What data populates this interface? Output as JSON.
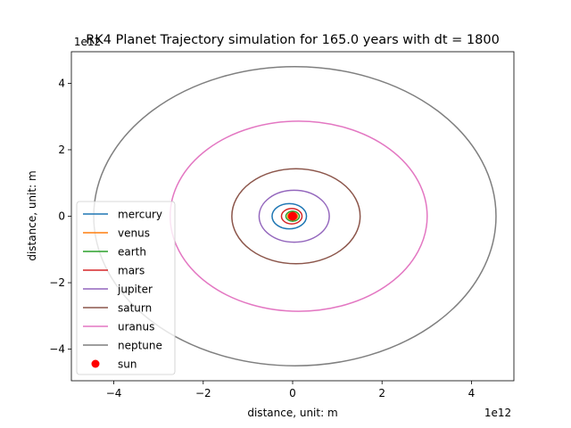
{
  "chart_data": {
    "type": "line",
    "title": "RK4 Planet Trajectory simulation for 165.0 years with dt = 1800",
    "xlabel": "distance, unit: m",
    "ylabel": "distance, unit: m",
    "x_offset_label": "1e12",
    "y_offset_label": "1e12",
    "xlim": [
      -4950000000000.0,
      4950000000000.0
    ],
    "ylim": [
      -4950000000000.0,
      4950000000000.0
    ],
    "x_ticks": [
      -4,
      -2,
      0,
      2,
      4
    ],
    "y_ticks": [
      -4,
      -2,
      0,
      2,
      4
    ],
    "x_tick_labels": [
      "−4",
      "−2",
      "0",
      "2",
      "4"
    ],
    "y_tick_labels": [
      "−4",
      "−2",
      "0",
      "2",
      "4"
    ],
    "grid": false,
    "legend_position": "lower-left",
    "series": [
      {
        "name": "mercury",
        "color": "#1f77b4",
        "orbit": {
          "x_min": -460000000000.0,
          "x_max": 310000000000.0,
          "y_max": 380000000000.0
        }
      },
      {
        "name": "venus",
        "color": "#ff7f0e",
        "orbit": {
          "x_min": -110000000000.0,
          "x_max": 110000000000.0,
          "y_max": 110000000000.0
        }
      },
      {
        "name": "earth",
        "color": "#2ca02c",
        "orbit": {
          "x_min": -150000000000.0,
          "x_max": 150000000000.0,
          "y_max": 150000000000.0
        }
      },
      {
        "name": "mars",
        "color": "#d62728",
        "orbit": {
          "x_min": -250000000000.0,
          "x_max": 210000000000.0,
          "y_max": 230000000000.0
        }
      },
      {
        "name": "jupiter",
        "color": "#9467bd",
        "orbit": {
          "x_min": -750000000000.0,
          "x_max": 820000000000.0,
          "y_max": 780000000000.0
        }
      },
      {
        "name": "saturn",
        "color": "#8c564b",
        "orbit": {
          "x_min": -1360000000000.0,
          "x_max": 1510000000000.0,
          "y_max": 1430000000000.0
        }
      },
      {
        "name": "uranus",
        "color": "#e377c2",
        "orbit": {
          "x_min": -2740000000000.0,
          "x_max": 3010000000000.0,
          "y_max": 2860000000000.0
        }
      },
      {
        "name": "neptune",
        "color": "#7f7f7f",
        "orbit": {
          "x_min": -4450000000000.0,
          "x_max": 4550000000000.0,
          "y_max": 4500000000000.0
        }
      }
    ],
    "sun": {
      "name": "sun",
      "color": "#ff0000",
      "x": 0,
      "y": 0
    }
  }
}
